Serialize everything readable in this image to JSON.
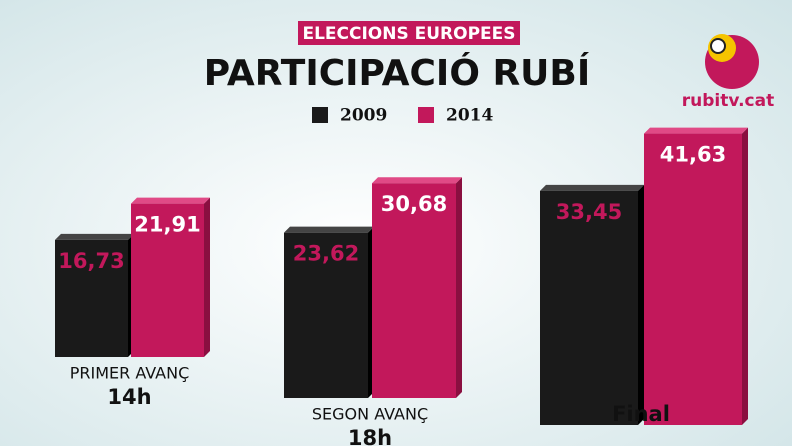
{
  "chart_data": {
    "type": "bar",
    "title": "PARTICIPACIÓ RUBÍ",
    "subtitle": "ELECCIONS EUROPEES",
    "logo_text": "rubitv.cat",
    "categories": [
      [
        "PRIMER AVANÇ",
        "14h"
      ],
      [
        "SEGON AVANÇ",
        "18h"
      ],
      [
        "Final"
      ]
    ],
    "series": [
      {
        "name": "2009",
        "color": "#1a1a1a",
        "values": [
          16.73,
          23.62,
          33.45
        ],
        "value_labels": [
          "16,73",
          "23,62",
          "33,45"
        ]
      },
      {
        "name": "2014",
        "color": "#c2185b",
        "values": [
          21.91,
          30.68,
          41.63
        ],
        "value_labels": [
          "21,91",
          "30,68",
          "41,63"
        ]
      }
    ],
    "legend": "top"
  }
}
